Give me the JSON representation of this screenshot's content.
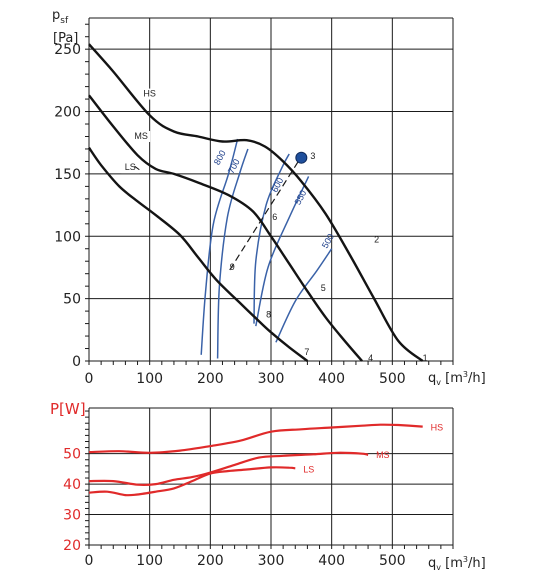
{
  "chart_data": [
    {
      "type": "line",
      "title": "",
      "ylabel": "p",
      "ylabel_sub": "sf",
      "ylabel_unit": "[Pa]",
      "xlabel": "q",
      "xlabel_sub": "v",
      "xlabel_unit": " [m",
      "xlabel_sup": "3",
      "xlabel_tail": "/h]",
      "xlim": [
        0,
        600
      ],
      "ylim": [
        0,
        275
      ],
      "xticks": [
        "0",
        "100",
        "200",
        "300",
        "400",
        "500"
      ],
      "yticks": [
        "0",
        "50",
        "100",
        "150",
        "200",
        "250"
      ],
      "grid": true,
      "series": [
        {
          "name": "HS",
          "x": [
            0,
            40,
            100,
            140,
            180,
            220,
            260,
            290,
            320,
            350,
            390,
            430,
            470,
            510,
            550
          ],
          "y": [
            254,
            232,
            197,
            184,
            180,
            176,
            177,
            172,
            160,
            144,
            118,
            85,
            50,
            16,
            0
          ]
        },
        {
          "name": "MS",
          "x": [
            0,
            40,
            80,
            110,
            140,
            180,
            230,
            270,
            300,
            330,
            360,
            390,
            420,
            450
          ],
          "y": [
            213,
            188,
            165,
            154,
            150,
            143,
            133,
            120,
            100,
            78,
            56,
            35,
            17,
            0
          ]
        },
        {
          "name": "LS",
          "x": [
            0,
            20,
            50,
            80,
            110,
            150,
            180,
            210,
            250,
            280,
            300,
            330,
            360
          ],
          "y": [
            171,
            157,
            140,
            128,
            117,
            101,
            83,
            65,
            46,
            32,
            23,
            11,
            0
          ]
        }
      ],
      "operating_points": [
        {
          "label": "1",
          "x": 550,
          "y": 0
        },
        {
          "label": "2",
          "x": 470,
          "y": 95
        },
        {
          "label": "3",
          "x": 365,
          "y": 162
        },
        {
          "label": "4",
          "x": 460,
          "y": 0
        },
        {
          "label": "5",
          "x": 382,
          "y": 56
        },
        {
          "label": "6",
          "x": 302,
          "y": 113
        },
        {
          "label": "7",
          "x": 355,
          "y": 5
        },
        {
          "label": "8",
          "x": 292,
          "y": 35
        },
        {
          "label": "9",
          "x": 232,
          "y": 73
        }
      ],
      "highlight_point": {
        "x": 350,
        "y": 163,
        "color": "#1f4f9c"
      },
      "iso_noise": {
        "color": "#3a62a8",
        "labels": [
          "800",
          "700",
          "600",
          "550",
          "500"
        ]
      }
    },
    {
      "type": "line",
      "title": "",
      "ylabel": "P[W]",
      "xlabel": "q",
      "xlabel_sub": "v",
      "xlabel_unit": " [m",
      "xlabel_sup": "3",
      "xlabel_tail": "/h]",
      "xlim": [
        0,
        600
      ],
      "ylim": [
        20,
        65
      ],
      "xticks": [
        "0",
        "100",
        "200",
        "300",
        "400",
        "500"
      ],
      "yticks": [
        "20",
        "30",
        "40",
        "50"
      ],
      "grid": true,
      "color": "#e02a2a",
      "series": [
        {
          "name": "HS",
          "x": [
            0,
            50,
            100,
            150,
            200,
            250,
            300,
            350,
            400,
            450,
            480,
            510,
            550
          ],
          "y": [
            50.5,
            50.8,
            50.3,
            51,
            52.5,
            54.3,
            57.2,
            58,
            58.6,
            59.2,
            59.5,
            59.4,
            58.9
          ]
        },
        {
          "name": "MS",
          "x": [
            0,
            40,
            80,
            110,
            140,
            170,
            200,
            240,
            280,
            320,
            370,
            410,
            450,
            460
          ],
          "y": [
            41,
            41,
            39.8,
            40,
            41.4,
            42.3,
            43.8,
            46.3,
            48.7,
            49.3,
            49.8,
            50.3,
            50,
            49.6
          ]
        },
        {
          "name": "LS",
          "x": [
            0,
            30,
            60,
            80,
            110,
            140,
            170,
            200,
            230,
            260,
            300,
            330,
            340
          ],
          "y": [
            37.2,
            37.5,
            36.4,
            36.6,
            37.5,
            38.6,
            41,
            43.5,
            44.3,
            44.8,
            45.5,
            45.4,
            45.2
          ]
        }
      ]
    }
  ]
}
